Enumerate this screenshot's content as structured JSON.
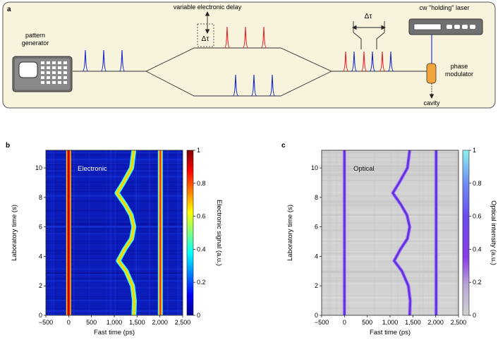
{
  "panel_a": {
    "label": "a",
    "pattern_generator": [
      "pattern",
      "generator"
    ],
    "variable_delay": "variable electronic delay",
    "delta_tau": "Δτ",
    "cw_laser": "cw \"holding\" laser",
    "phase_modulator": [
      "phase",
      "modulator"
    ],
    "cavity": "cavity",
    "colors": {
      "upper_pulses": "#e8232a",
      "lower_pulses": "#1a2bc9",
      "panel_bg": "#f7f3dd",
      "modulator": "#f2a53a"
    }
  },
  "chart_data": [
    {
      "type": "heatmap",
      "panel_label": "b",
      "inset_label": "Electronic",
      "xlabel": "Fast time (ps)",
      "ylabel": "Laboratory time (s)",
      "colorbar_label": "Electronic signal (a.u.)",
      "colormap": "jet",
      "xlim": [
        -500,
        2500
      ],
      "ylim": [
        0,
        11.2
      ],
      "xticks": [
        "−500",
        "0",
        "500",
        "1,000",
        "1,500",
        "2,000",
        "2,500"
      ],
      "yticks": [
        "0",
        "2",
        "4",
        "6",
        "8",
        "10"
      ],
      "colorbar_ticks": [
        "0",
        "0.2",
        "0.4",
        "0.6",
        "0.8",
        "1"
      ],
      "traces": [
        {
          "name": "fixed pulse 1",
          "fast_time_ps": 0
        },
        {
          "name": "delayed pulse",
          "fast_time_ps_vs_lab_time_s": [
            [
              0,
              1430
            ],
            [
              1,
              1440
            ],
            [
              2,
              1400
            ],
            [
              3,
              1260
            ],
            [
              3.7,
              1090
            ],
            [
              4.5,
              1230
            ],
            [
              5.2,
              1380
            ],
            [
              6,
              1430
            ],
            [
              6.8,
              1370
            ],
            [
              7.5,
              1240
            ],
            [
              8.3,
              1060
            ],
            [
              9,
              1200
            ],
            [
              10,
              1380
            ],
            [
              11.2,
              1430
            ]
          ]
        },
        {
          "name": "fixed pulse 2",
          "fast_time_ps": 2010
        }
      ]
    },
    {
      "type": "heatmap",
      "panel_label": "c",
      "inset_label": "Optical",
      "xlabel": "Fast time (ps)",
      "ylabel": "Laboratory time (s)",
      "colorbar_label": "Optical intensity (a.u.)",
      "colormap": "gray-purple-cyan",
      "xlim": [
        -500,
        2500
      ],
      "ylim": [
        0,
        11.2
      ],
      "xticks": [
        "−500",
        "0",
        "500",
        "1,000",
        "1,500",
        "2,000",
        "2,500"
      ],
      "yticks": [
        "0",
        "2",
        "4",
        "6",
        "8",
        "10"
      ],
      "colorbar_ticks": [
        "0",
        "0.2",
        "0.4",
        "0.6",
        "0.8",
        "1"
      ],
      "traces": [
        {
          "name": "fixed pulse 1",
          "fast_time_ps": 0
        },
        {
          "name": "delayed pulse",
          "fast_time_ps_vs_lab_time_s": [
            [
              0,
              1430
            ],
            [
              1,
              1440
            ],
            [
              2,
              1400
            ],
            [
              3,
              1260
            ],
            [
              3.7,
              1090
            ],
            [
              4.5,
              1230
            ],
            [
              5.2,
              1380
            ],
            [
              6,
              1430
            ],
            [
              6.8,
              1370
            ],
            [
              7.5,
              1240
            ],
            [
              8.3,
              1060
            ],
            [
              9,
              1200
            ],
            [
              10,
              1380
            ],
            [
              11.2,
              1430
            ]
          ]
        },
        {
          "name": "fixed pulse 2",
          "fast_time_ps": 2010
        }
      ]
    }
  ]
}
